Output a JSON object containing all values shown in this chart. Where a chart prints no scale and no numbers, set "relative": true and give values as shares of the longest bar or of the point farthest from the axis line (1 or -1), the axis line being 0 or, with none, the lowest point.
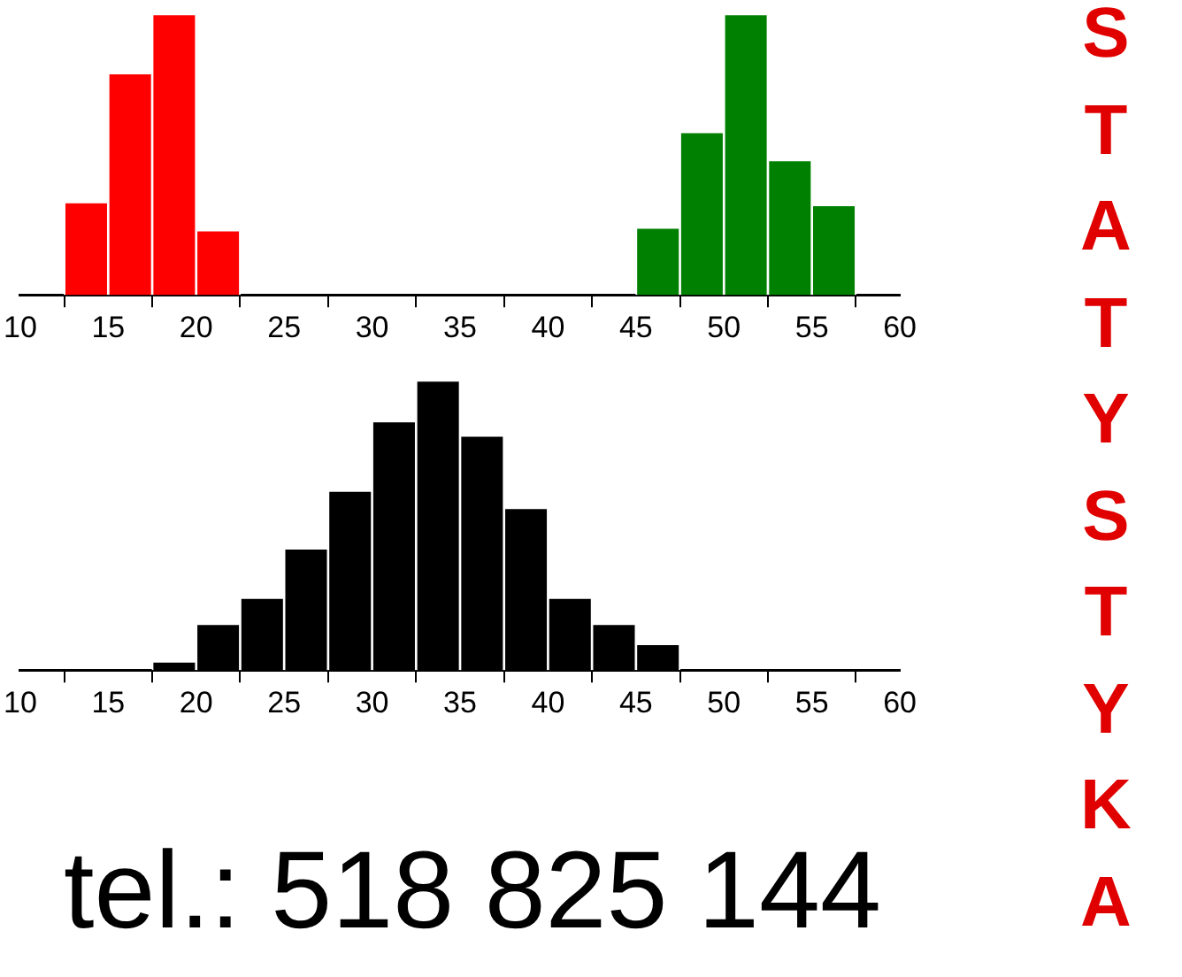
{
  "chart_data": [
    {
      "type": "bar",
      "relative": true,
      "xlim": [
        10,
        60
      ],
      "xticks": [
        10,
        15,
        20,
        25,
        30,
        35,
        40,
        45,
        50,
        55,
        60
      ],
      "x": [
        13.75,
        16.25,
        18.75,
        21.25,
        23.75,
        26.25,
        28.75,
        31.25,
        33.75,
        36.25,
        38.75,
        41.25,
        43.75,
        46.25,
        48.75,
        51.25,
        53.75,
        56.25
      ],
      "values": [
        0.33,
        0.79,
        1,
        0.23,
        null,
        null,
        null,
        null,
        null,
        null,
        null,
        null,
        null,
        0.24,
        0.58,
        1,
        0.48,
        0.32
      ],
      "colors": [
        "#ff0000",
        "#ff0000",
        "#ff0000",
        "#ff0000",
        "#ff0000",
        "#ff0000",
        "#ff0000",
        "#ff0000",
        "#ff0000",
        "#008000",
        "#008000",
        "#008000",
        "#008000",
        "#008000",
        "#008000",
        "#008000",
        "#008000",
        "#008000"
      ]
    },
    {
      "type": "bar",
      "relative": true,
      "xlim": [
        10,
        60
      ],
      "xticks": [
        10,
        15,
        20,
        25,
        30,
        35,
        40,
        45,
        50,
        55,
        60
      ],
      "x": [
        18.75,
        21.25,
        23.75,
        26.25,
        28.75,
        31.25,
        33.75,
        36.25,
        38.75,
        41.25,
        43.75,
        46.25
      ],
      "values": [
        0.03,
        0.16,
        0.25,
        0.42,
        0.62,
        0.86,
        1,
        0.81,
        0.56,
        0.25,
        0.16,
        0.09
      ],
      "color": "#000000",
      "annotations": [
        "STATYSTYKA",
        "tel.: 518 825 144"
      ]
    }
  ]
}
